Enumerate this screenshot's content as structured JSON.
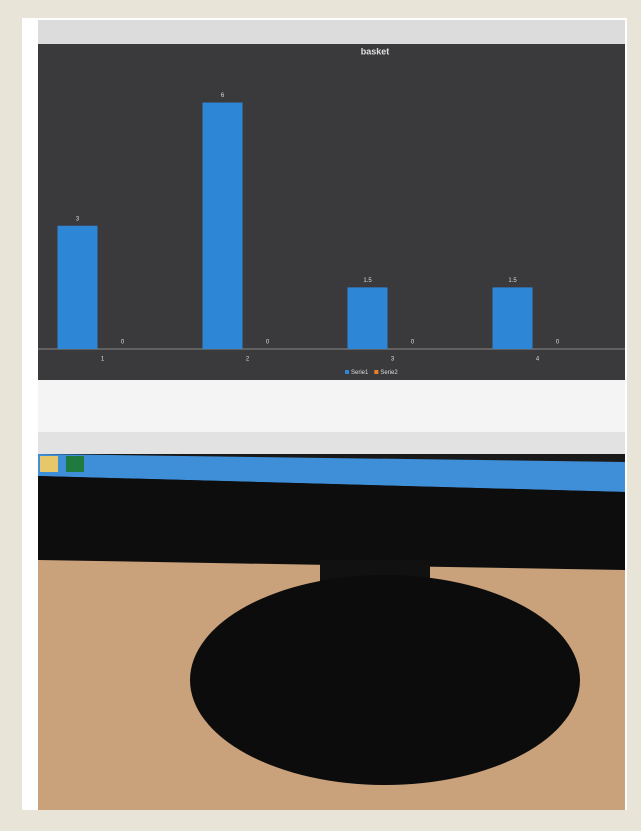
{
  "chart_data": {
    "type": "bar",
    "title": "basket",
    "categories": [
      "1",
      "2",
      "3",
      "4"
    ],
    "series": [
      {
        "name": "Serie1",
        "color": "#2e86d6",
        "values": [
          3,
          6,
          1.5,
          1.5
        ]
      },
      {
        "name": "Serie2",
        "color": "#e8822a",
        "values": [
          0,
          0,
          0,
          0
        ]
      }
    ],
    "ylim": [
      0,
      6.5
    ],
    "legend": "bottom",
    "data_labels": true
  }
}
